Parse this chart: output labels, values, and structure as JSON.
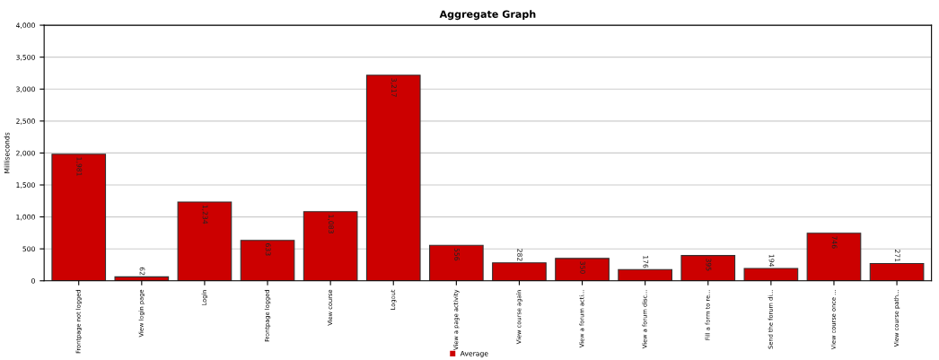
{
  "chart_data": {
    "type": "bar",
    "title": "Aggregate Graph",
    "ylabel": "Milliseconds",
    "categories": [
      "Frontpage not logged",
      "View login page",
      "Login",
      "Frontpage logged",
      "View course",
      "Logout",
      "View a page activity",
      "View course again",
      "View a forum acti...",
      "View a forum disc...",
      "Fill a form to re...",
      "Send the forum di...",
      "View course once ...",
      "View course path..."
    ],
    "series": [
      {
        "name": "Average",
        "color": "#cc0000",
        "values": [
          1981,
          62,
          1234,
          633,
          1083,
          3217,
          556,
          282,
          350,
          176,
          395,
          194,
          746,
          271
        ],
        "value_labels": [
          "1,981",
          "62",
          "1,234",
          "633",
          "1,083",
          "3,217",
          "556",
          "282",
          "350",
          "176",
          "395",
          "194",
          "746",
          "271"
        ]
      }
    ],
    "ylim": [
      0,
      4000
    ],
    "yticks": [
      {
        "value": 0,
        "label": "0"
      },
      {
        "value": 500,
        "label": "500"
      },
      {
        "value": 1000,
        "label": "1,000"
      },
      {
        "value": 1500,
        "label": "1,500"
      },
      {
        "value": 2000,
        "label": "2,000"
      },
      {
        "value": 2500,
        "label": "2,500"
      },
      {
        "value": 3000,
        "label": "3,000"
      },
      {
        "value": 3500,
        "label": "3,500"
      },
      {
        "value": 4000,
        "label": "4,000"
      }
    ],
    "grid": "y",
    "legend": "bottom"
  }
}
